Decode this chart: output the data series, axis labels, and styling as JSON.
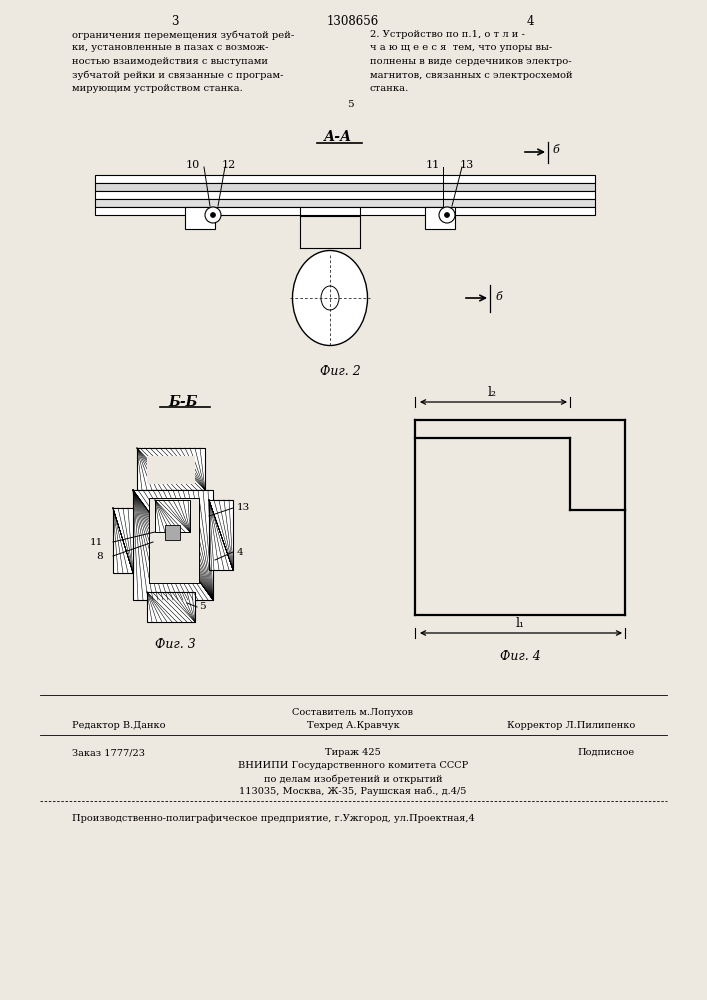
{
  "bg_color": "#ede8e0",
  "title_line": "1308656",
  "page_nums": [
    "3",
    "4"
  ],
  "left_text": [
    "ограничения перемещения зубчатой рей-",
    "ки, установленные в пазах с возмож-",
    "ностью взаимодействия с выступами",
    "зубчатой рейки и связанные с програм-",
    "мирующим устройством станка."
  ],
  "right_text": [
    "2. Устройство по п.1, о т л и -",
    "ч а ю щ е е с я  тем, что упоры вы-",
    "полнены в виде сердечников электро-",
    "магнитов, связанных с электросхемой",
    "станка."
  ],
  "right_num": "5",
  "section_aa": "А-А",
  "section_bb": "Б-Б",
  "fig2_label": "Фиг. 2",
  "fig3_label": "Фиг. 3",
  "fig4_label": "Фиг. 4",
  "footer_composer": "Составитель м.Лопухов",
  "footer_editor": "Редактор В.Данко",
  "footer_tech": "Техред А.Кравчук",
  "footer_corr": "Корректор Л.Пилипенко",
  "footer_order": "Заказ 1777/23",
  "footer_circ": "Тираж 425",
  "footer_sign": "Подписное",
  "footer_inst": "ВНИИПИ Государственного комитета СССР",
  "footer_dept": "по делам изобретений и открытий",
  "footer_addr": "113035, Москва, Ж-35, Раушская наб., д.4/5",
  "footer_prod": "Производственно-полиграфическое предприятие, г.Ужгород, ул.Проектная,4",
  "label_b": "б",
  "label_10": "10",
  "label_12": "12",
  "label_11": "11",
  "label_13": "13",
  "label_4": "4",
  "label_5": "5",
  "label_8": "8",
  "label_l2": "l₂",
  "label_l1": "l₁"
}
